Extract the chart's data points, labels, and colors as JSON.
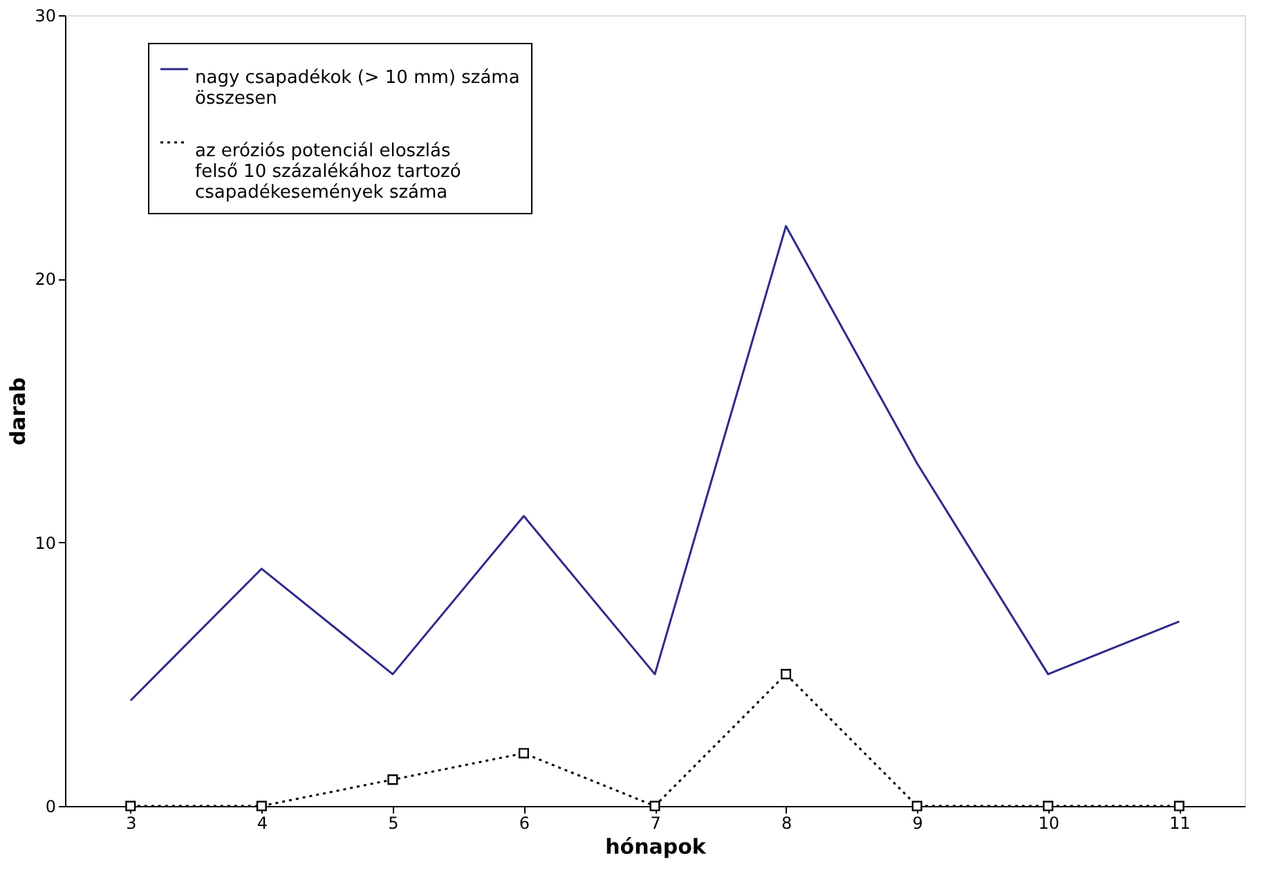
{
  "chart_data": {
    "type": "line",
    "xlabel": "hónapok",
    "ylabel": "darab",
    "categories": [
      "3",
      "4",
      "5",
      "6",
      "7",
      "8",
      "9",
      "10",
      "11"
    ],
    "series": [
      {
        "name": "nagy csapadékok (> 10 mm) száma összesen",
        "color": "#2e2b8c",
        "values": [
          4,
          9,
          5,
          11,
          5,
          22,
          13,
          5,
          7
        ],
        "line_style": "solid",
        "marker": "none"
      },
      {
        "name": "az eróziós potenciál eloszlás felső 10 százalékához tartozó csapadékesemények száma",
        "color": "#000000",
        "values": [
          0,
          0,
          1,
          2,
          0,
          5,
          0,
          0,
          0
        ],
        "line_style": "dotted",
        "marker": "square"
      }
    ],
    "ylim": [
      0,
      30
    ],
    "yticks": [
      0,
      10,
      20,
      30
    ],
    "grid": false,
    "legend": "top left"
  }
}
